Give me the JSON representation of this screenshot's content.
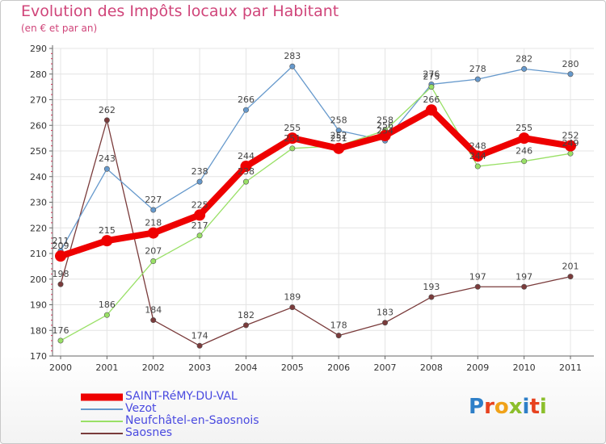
{
  "header": {
    "title": "Evolution des Impôts locaux par Habitant",
    "subtitle": "(en € et par an)"
  },
  "logo": {
    "text": "Proxiti",
    "colors": [
      "#2e7fc8",
      "#e7421f",
      "#f0a219",
      "#8cbf2c",
      "#2e7fc8",
      "#e7421f",
      "#8cbf2c"
    ]
  },
  "chart_data": {
    "type": "line",
    "title": "Evolution des Impôts locaux par Habitant",
    "subtitle": "(en € et par an)",
    "xlabel": "",
    "ylabel": "",
    "categories": [
      "2000",
      "2001",
      "2002",
      "2003",
      "2004",
      "2005",
      "2006",
      "2007",
      "2008",
      "2009",
      "2010",
      "2011"
    ],
    "ylim": [
      170,
      290
    ],
    "yticks": [
      170,
      180,
      190,
      200,
      210,
      220,
      230,
      240,
      250,
      260,
      270,
      280,
      290
    ],
    "grid": true,
    "legend_position": "bottom-left",
    "series": [
      {
        "name": "SAINT-RéMY-DU-VAL",
        "color": "#ee0000",
        "values": [
          209,
          215,
          218,
          225,
          244,
          255,
          251,
          256,
          266,
          248,
          255,
          252
        ],
        "labels": [
          "209",
          "215",
          "218",
          "225",
          "244",
          "255",
          "251",
          "256",
          "266",
          "248",
          "255",
          "252"
        ]
      },
      {
        "name": "Vezot",
        "color": "#6699cc",
        "values": [
          211,
          243,
          227,
          238,
          266,
          283,
          258,
          254,
          276,
          278,
          282,
          280
        ],
        "labels": [
          "211",
          "243",
          "227",
          "238",
          "266",
          "283",
          "258",
          "254",
          "276",
          "278",
          "282",
          "280"
        ]
      },
      {
        "name": "Neufchâtel-en-Saosnois",
        "color": "#99e066",
        "values": [
          176,
          186,
          207,
          217,
          238,
          251,
          252,
          258,
          275,
          244,
          246,
          249
        ],
        "labels": [
          "176",
          "186",
          "207",
          "217",
          "238",
          "251",
          "252",
          "258",
          "275",
          "244",
          "246",
          "249"
        ]
      },
      {
        "name": "Saosnes",
        "color": "#7a3b3b",
        "values": [
          198,
          262,
          184,
          174,
          182,
          189,
          178,
          183,
          193,
          197,
          197,
          201
        ],
        "labels": [
          "198",
          "262",
          "184",
          "174",
          "182",
          "189",
          "178",
          "183",
          "193",
          "197",
          "197",
          "201"
        ]
      }
    ]
  }
}
